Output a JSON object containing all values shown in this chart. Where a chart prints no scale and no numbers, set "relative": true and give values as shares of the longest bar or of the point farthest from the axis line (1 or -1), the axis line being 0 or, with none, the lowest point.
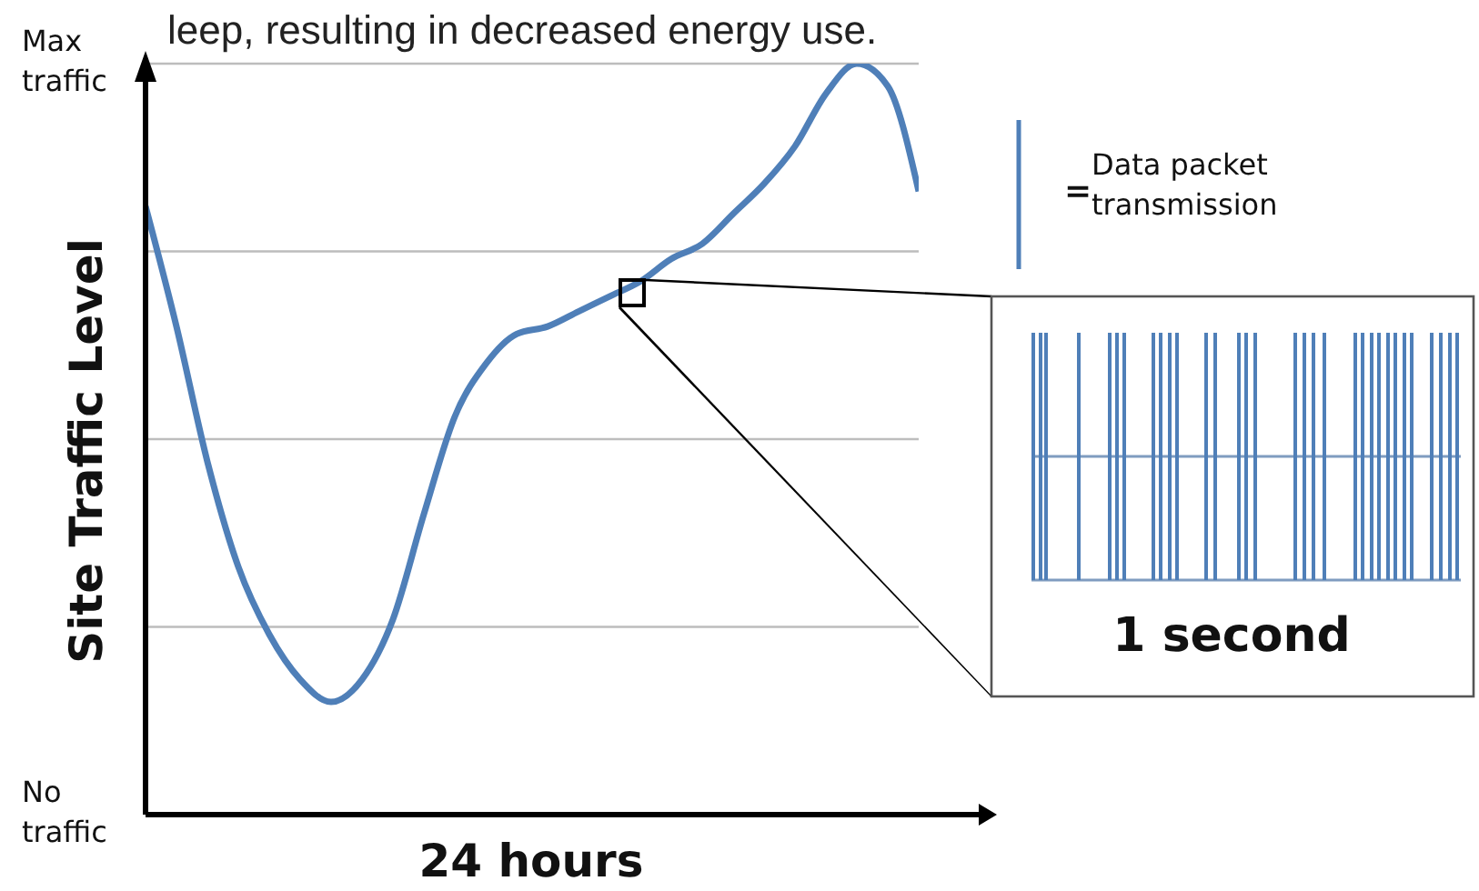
{
  "chart_data": {
    "type": "line",
    "xlabel": "24 hours",
    "ylabel": "Site Traffic Level",
    "annotations": [
      "leep, resulting in decreased energy use.",
      "Max traffic",
      "No traffic",
      "= Data packet transmission",
      "1 second"
    ],
    "categories": [
      null,
      null,
      null,
      null,
      null,
      null,
      null,
      null,
      null,
      null,
      null,
      null,
      null,
      null,
      null,
      null,
      null,
      null,
      null,
      null,
      null,
      null,
      null,
      null,
      null,
      null
    ],
    "series": [
      {
        "color": "#4f7fb8",
        "values": [
          0.81,
          0.65,
          0.47,
          0.33,
          0.24,
          0.18,
          0.15,
          0.18,
          0.26,
          0.4,
          0.53,
          0.6,
          0.64,
          0.65,
          0.67,
          0.69,
          0.71,
          0.74,
          0.76,
          0.8,
          0.84,
          0.89,
          0.96,
          1,
          0.97,
          0.83
        ]
      }
    ],
    "relative": true,
    "grid": "y",
    "marker": "none",
    "line_style": "solid"
  }
}
